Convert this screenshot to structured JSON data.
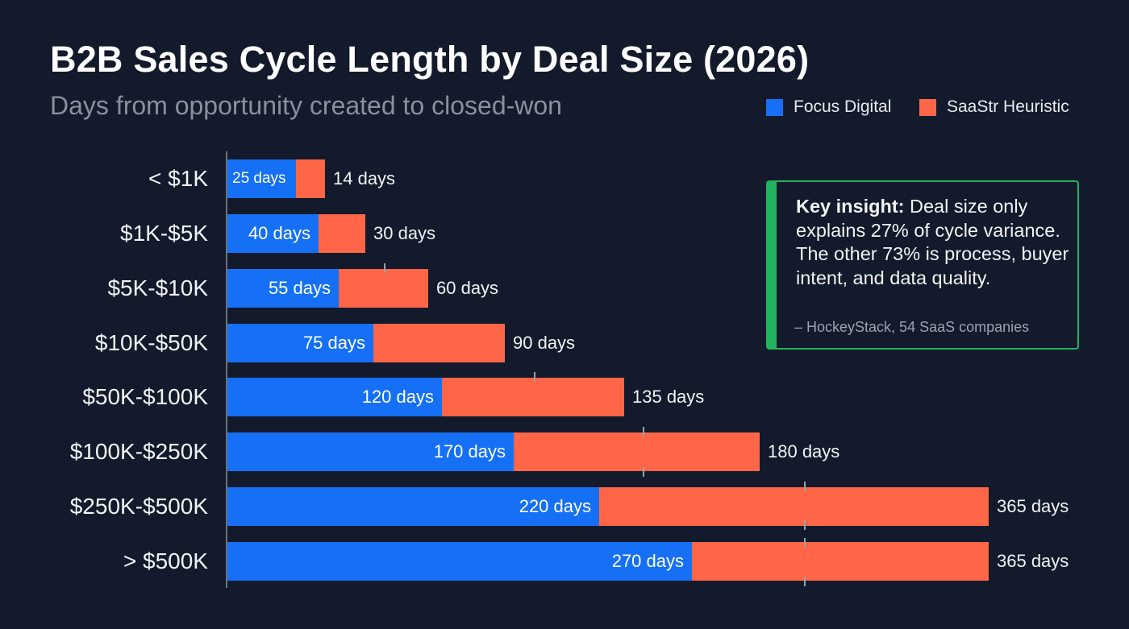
{
  "chart_data": {
    "type": "bar",
    "orientation": "horizontal",
    "title": "B2B Sales Cycle Length by Deal Size (2026)",
    "subtitle": "Days from opportunity created to closed-won",
    "categories": [
      "< $1K",
      "$1K-$5K",
      "$5K-$10K",
      "$10K-$50K",
      "$50K-$100K",
      "$100K-$250K",
      "$250K-$500K",
      "> $500K"
    ],
    "series": [
      {
        "name": "Focus Digital",
        "color": "#1570f5",
        "values": [
          25,
          40,
          55,
          75,
          120,
          170,
          220,
          270
        ],
        "labels": [
          "25 days",
          "40 days",
          "55 days",
          "75 days",
          "120 days",
          "170 days",
          "220 days",
          "270 days"
        ]
      },
      {
        "name": "SaaStr Heuristic",
        "color": "#ff6648",
        "values": [
          14,
          30,
          60,
          90,
          135,
          180,
          365,
          365
        ],
        "labels": [
          "14 days",
          "30 days",
          "60 days",
          "90 days",
          "135 days",
          "180 days",
          "365 days",
          "365 days"
        ]
      }
    ],
    "xlabel": "",
    "ylabel": "",
    "legend_position": "top-right",
    "grid": false
  },
  "insight": {
    "bold": "Key insight:",
    "text": " Deal size only explains 27% of cycle variance. The other 73% is process, buyer intent, and data quality.",
    "source": "– HockeyStack, 54 SaaS companies",
    "accent": "#22b35e"
  },
  "colors": {
    "background": "#121a2b"
  }
}
